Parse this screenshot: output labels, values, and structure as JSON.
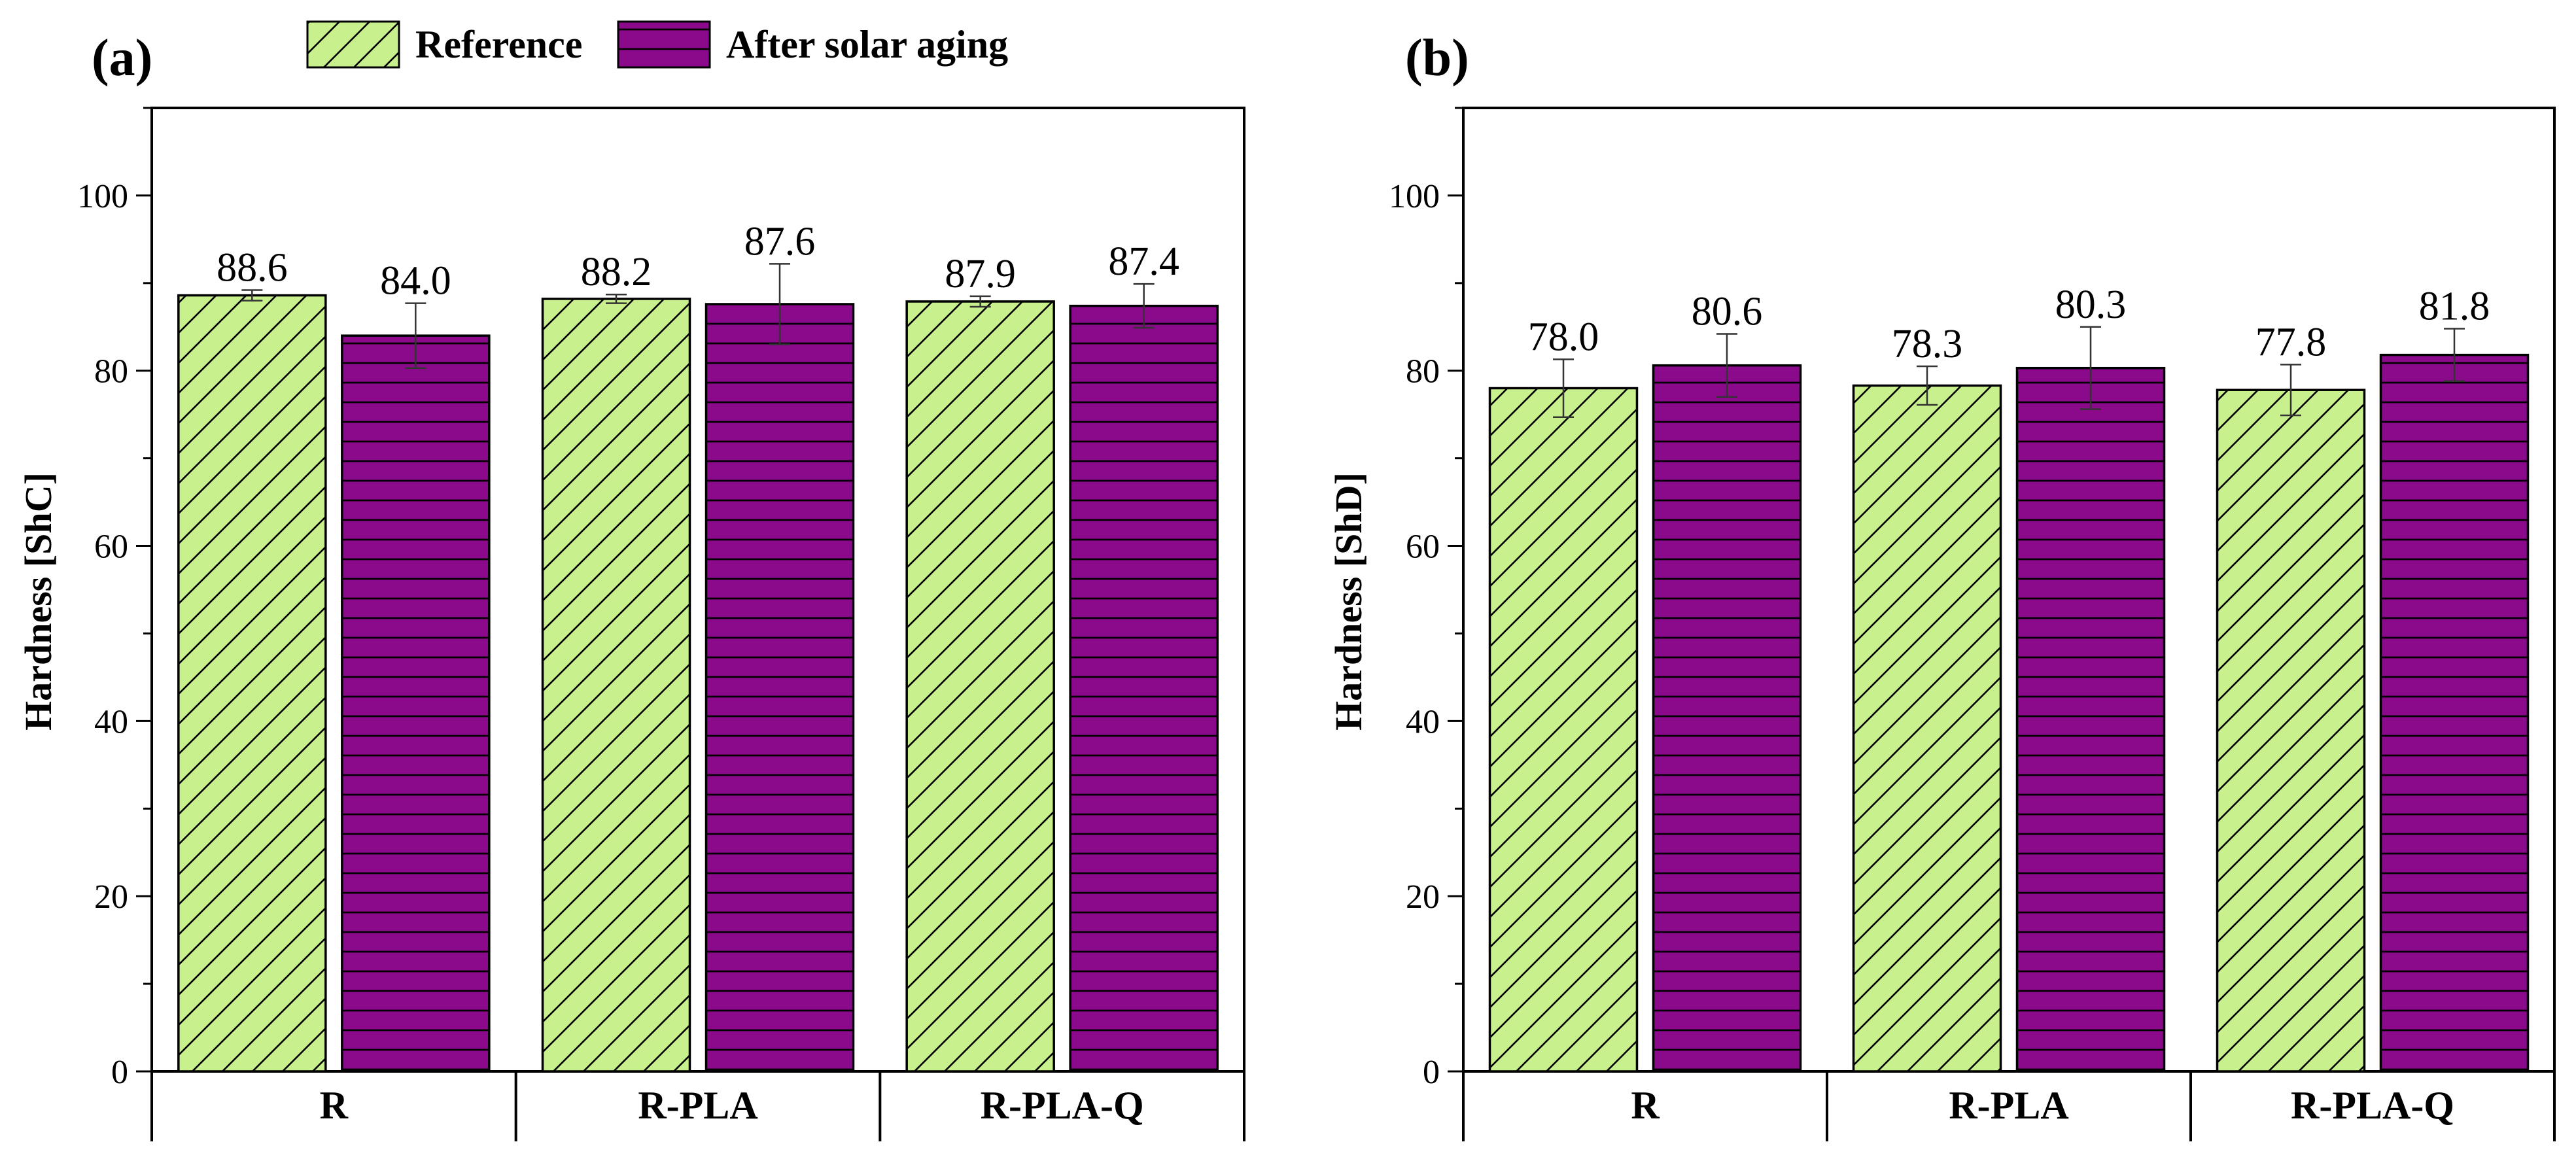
{
  "legend": [
    "Reference",
    "After solar aging"
  ],
  "series_colors": {
    "Reference": "#c8f08c",
    "After solar aging": "#8b0a8b"
  },
  "chart_data": [
    {
      "type": "bar",
      "panel_label": "(a)",
      "ylabel": "Hardness [ShC]",
      "xlabel": "",
      "ylim": [
        0,
        110
      ],
      "yticks": [
        "0",
        "20",
        "40",
        "60",
        "80",
        "100"
      ],
      "categories": [
        "R",
        "R-PLA",
        "R-PLA-Q"
      ],
      "series": [
        {
          "name": "Reference",
          "values": [
            88.6,
            88.2,
            87.9
          ],
          "errors": [
            0.6,
            0.5,
            0.6
          ],
          "labels": [
            "88.6",
            "88.2",
            "87.9"
          ]
        },
        {
          "name": "After solar aging",
          "values": [
            84.0,
            87.6,
            87.4
          ],
          "errors": [
            3.7,
            4.6,
            2.5
          ],
          "labels": [
            "84.0",
            "87.6",
            "87.4"
          ]
        }
      ]
    },
    {
      "type": "bar",
      "panel_label": "(b)",
      "ylabel": "Hardness [ShD]",
      "xlabel": "",
      "ylim": [
        0,
        110
      ],
      "yticks": [
        "0",
        "20",
        "40",
        "60",
        "80",
        "100"
      ],
      "categories": [
        "R",
        "R-PLA",
        "R-PLA-Q"
      ],
      "series": [
        {
          "name": "Reference",
          "values": [
            78.0,
            78.3,
            77.8
          ],
          "errors": [
            3.3,
            2.2,
            2.9
          ],
          "labels": [
            "78.0",
            "78.3",
            "77.8"
          ]
        },
        {
          "name": "After solar aging",
          "values": [
            80.6,
            80.3,
            81.8
          ],
          "errors": [
            3.6,
            4.7,
            3.0
          ],
          "labels": [
            "80.6",
            "80.3",
            "81.8"
          ]
        }
      ]
    }
  ]
}
